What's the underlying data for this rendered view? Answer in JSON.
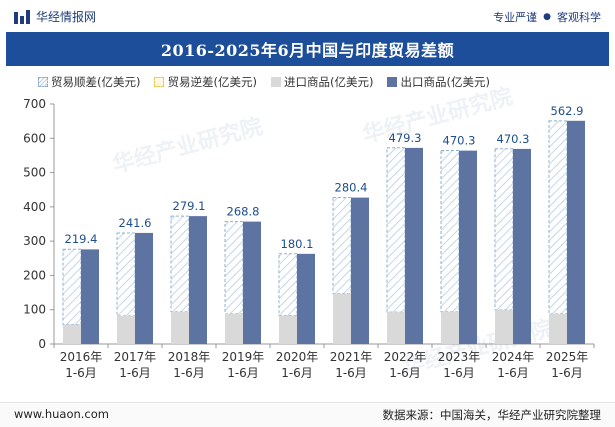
{
  "header": {
    "brand": "华经情报网",
    "tag1": "专业严谨",
    "tag2": "客观科学"
  },
  "title": "2016-2025年6月中国与印度贸易差额",
  "legend": {
    "surplus": "贸易顺差(亿美元)",
    "deficit": "贸易逆差(亿美元)",
    "import": "进口商品(亿美元)",
    "export": "出口商品(亿美元)"
  },
  "colors": {
    "export": "#5d74a3",
    "import": "#d9d9d9",
    "surplus_stroke": "#8fb0d0",
    "label": "#1f4e8c",
    "axis": "#999999"
  },
  "footer": {
    "site": "www.huaon.com",
    "source": "数据来源：中国海关，华经产业研究院整理"
  },
  "watermark": "华经产业研究院",
  "chart_data": {
    "type": "bar",
    "title": "2016-2025年6月中国与印度贸易差额",
    "categories": [
      [
        "2016年",
        "1-6月"
      ],
      [
        "2017年",
        "1-6月"
      ],
      [
        "2018年",
        "1-6月"
      ],
      [
        "2019年",
        "1-6月"
      ],
      [
        "2020年",
        "1-6月"
      ],
      [
        "2021年",
        "1-6月"
      ],
      [
        "2022年",
        "1-6月"
      ],
      [
        "2023年",
        "1-6月"
      ],
      [
        "2024年",
        "1-6月"
      ],
      [
        "2025年",
        "1-6月"
      ]
    ],
    "ylim": [
      0,
      700
    ],
    "yticks": [
      0,
      100,
      200,
      300,
      400,
      500,
      600,
      700
    ],
    "series": [
      {
        "name": "贸易顺差(亿美元)",
        "values": [
          219.4,
          241.6,
          279.1,
          268.8,
          180.1,
          280.4,
          479.3,
          470.3,
          470.3,
          562.9
        ]
      },
      {
        "name": "进口商品(亿美元)",
        "values": [
          57,
          82,
          94,
          88,
          83,
          147,
          93,
          94,
          99,
          88
        ]
      },
      {
        "name": "出口商品(亿美元)",
        "values": [
          276,
          324,
          373,
          357,
          263,
          427,
          572,
          564,
          569,
          651
        ]
      }
    ]
  }
}
